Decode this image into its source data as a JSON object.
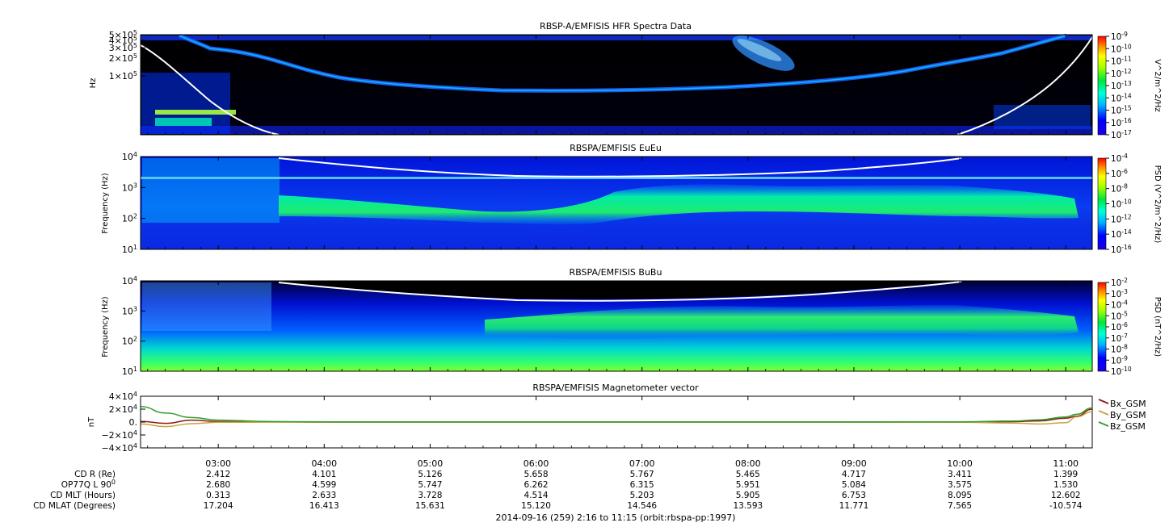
{
  "figure": {
    "footer": "2014-09-16 (259) 2:16 to 11:15 (orbit:rbspa-pp:1997)"
  },
  "time_axis": {
    "ticks": [
      "03:00",
      "04:00",
      "05:00",
      "06:00",
      "07:00",
      "08:00",
      "09:00",
      "10:00",
      "11:00"
    ],
    "start_hour": 2.2667,
    "end_hour": 11.25
  },
  "ephemeris": {
    "rows": [
      {
        "label": "CD R (Re)",
        "values": [
          "2.412",
          "4.101",
          "5.126",
          "5.658",
          "5.767",
          "5.465",
          "4.717",
          "3.411",
          "1.399"
        ]
      },
      {
        "label": "OP77Q L 90",
        "sup": "0",
        "values": [
          "2.680",
          "4.599",
          "5.747",
          "6.262",
          "6.315",
          "5.951",
          "5.084",
          "3.575",
          "1.530"
        ]
      },
      {
        "label": "CD MLT (Hours)",
        "values": [
          "0.313",
          "2.633",
          "3.728",
          "4.514",
          "5.203",
          "5.905",
          "6.753",
          "8.095",
          "12.602"
        ]
      },
      {
        "label": "CD MLAT (Degrees)",
        "values": [
          "17.204",
          "16.413",
          "15.631",
          "15.120",
          "14.546",
          "13.593",
          "11.771",
          "7.565",
          "-10.574"
        ]
      }
    ]
  },
  "chart_data": [
    {
      "type": "heatmap",
      "title": "RBSP-A/EMFISIS  HFR Spectra Data",
      "ylabel": "Hz",
      "yscale": "log",
      "ylim": [
        10000,
        500000
      ],
      "ytick_labels": [
        {
          "base": "5×10",
          "exp": "5",
          "value": 500000
        },
        {
          "base": "4×10",
          "exp": "5",
          "value": 400000
        },
        {
          "base": "3×10",
          "exp": "5",
          "value": 300000
        },
        {
          "base": "2×10",
          "exp": "5",
          "value": 200000
        },
        {
          "base": "1×10",
          "exp": "5",
          "value": 100000
        }
      ],
      "colorbar": {
        "label": "V^2/m^2/Hz",
        "ticks": [
          {
            "base": "10",
            "exp": "-9"
          },
          {
            "base": "10",
            "exp": "-10"
          },
          {
            "base": "10",
            "exp": "-11"
          },
          {
            "base": "10",
            "exp": "-12"
          },
          {
            "base": "10",
            "exp": "-13"
          },
          {
            "base": "10",
            "exp": "-14"
          },
          {
            "base": "10",
            "exp": "-15"
          },
          {
            "base": "10",
            "exp": "-16"
          },
          {
            "base": "10",
            "exp": "-17"
          }
        ]
      }
    },
    {
      "type": "heatmap",
      "title": "RBSPA/EMFISIS  EuEu",
      "ylabel": "Frequency (Hz)",
      "yscale": "log",
      "ylim": [
        10,
        10000
      ],
      "ytick_labels": [
        {
          "base": "10",
          "exp": "4"
        },
        {
          "base": "10",
          "exp": "3"
        },
        {
          "base": "10",
          "exp": "2"
        },
        {
          "base": "10",
          "exp": "1"
        }
      ],
      "colorbar": {
        "label": "PSD (V^2/m^2/Hz)",
        "ticks": [
          {
            "base": "10",
            "exp": "-4"
          },
          {
            "base": "10",
            "exp": "-6"
          },
          {
            "base": "10",
            "exp": "-8"
          },
          {
            "base": "10",
            "exp": "-10"
          },
          {
            "base": "10",
            "exp": "-12"
          },
          {
            "base": "10",
            "exp": "-14"
          },
          {
            "base": "10",
            "exp": "-16"
          }
        ]
      }
    },
    {
      "type": "heatmap",
      "title": "RBSPA/EMFISIS  BuBu",
      "ylabel": "Frequency (Hz)",
      "yscale": "log",
      "ylim": [
        10,
        10000
      ],
      "ytick_labels": [
        {
          "base": "10",
          "exp": "4"
        },
        {
          "base": "10",
          "exp": "3"
        },
        {
          "base": "10",
          "exp": "2"
        },
        {
          "base": "10",
          "exp": "1"
        }
      ],
      "colorbar": {
        "label": "PSD (nT^2/Hz)",
        "ticks": [
          {
            "base": "10",
            "exp": "-2"
          },
          {
            "base": "10",
            "exp": "-3"
          },
          {
            "base": "10",
            "exp": "-4"
          },
          {
            "base": "10",
            "exp": "-5"
          },
          {
            "base": "10",
            "exp": "-6"
          },
          {
            "base": "10",
            "exp": "-7"
          },
          {
            "base": "10",
            "exp": "-8"
          },
          {
            "base": "10",
            "exp": "-9"
          },
          {
            "base": "10",
            "exp": "-10"
          }
        ]
      }
    },
    {
      "type": "line",
      "title": "RBSPA/EMFISIS  Magnetometer vector",
      "ylabel": "nT",
      "ylim": [
        -40000,
        40000
      ],
      "ytick_labels": [
        {
          "base": "4×10",
          "exp": "4"
        },
        {
          "base": "2×10",
          "exp": "4"
        },
        {
          "base": "0.",
          "exp": ""
        },
        {
          "base": "−2×10",
          "exp": "4"
        },
        {
          "base": "−4×10",
          "exp": "4"
        }
      ],
      "x": [
        2.27,
        2.5,
        2.75,
        3.0,
        3.5,
        4.0,
        5.0,
        6.0,
        7.0,
        8.0,
        9.0,
        10.0,
        10.5,
        10.75,
        11.0,
        11.1,
        11.25
      ],
      "series": [
        {
          "name": "Bx_GSM",
          "color": "#8b1a1a",
          "values": [
            1000,
            -2000,
            3000,
            800,
            200,
            50,
            20,
            10,
            10,
            10,
            20,
            80,
            600,
            1800,
            6000,
            9000,
            20000
          ]
        },
        {
          "name": "By_GSM",
          "color": "#c8a43c",
          "values": [
            -3000,
            -7000,
            -2500,
            -400,
            -100,
            -30,
            -20,
            -10,
            -10,
            -10,
            -30,
            -300,
            -1500,
            -3000,
            -1000,
            8000,
            16000
          ]
        },
        {
          "name": "Bz_GSM",
          "color": "#2ca02c",
          "values": [
            24000,
            14000,
            7000,
            3000,
            800,
            300,
            100,
            80,
            80,
            80,
            100,
            400,
            1500,
            3500,
            8000,
            12000,
            22000
          ]
        }
      ]
    }
  ]
}
